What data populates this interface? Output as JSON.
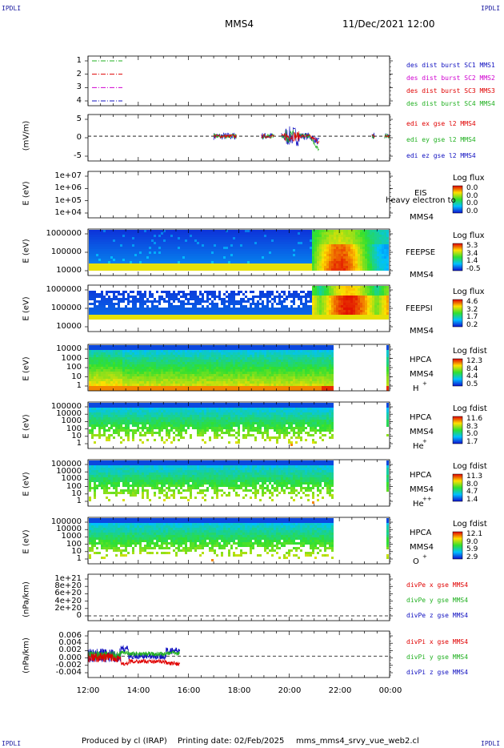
{
  "header": {
    "corner_tag": "IPDLI",
    "spacecraft": "MMS4",
    "datetime": "11/Dec/2021 12:00"
  },
  "footer": {
    "produced_by": "Produced by cl (IRAP)",
    "printing_date": "Printing date: 02/Feb/2025",
    "script": "mms_mms4_srvy_vue_web2.cl"
  },
  "colors": {
    "mms1": "#1010c0",
    "mms2": "#d000d0",
    "mms3": "#e00000",
    "mms4": "#20b020",
    "ex": "#e00000",
    "ey": "#20b020",
    "ez": "#1010c0"
  },
  "chart_data": [
    {
      "type": "line",
      "name": "burst",
      "yticks": [
        "1",
        "2",
        "3",
        "4"
      ],
      "ylim": [
        0.5,
        4.5
      ],
      "legend": [
        "des dist burst SC1 MMS1",
        "des dist burst SC2 MMS2",
        "des dist burst SC3 MMS3",
        "des dist burst SC4 MMS4"
      ],
      "series": [
        {
          "name": "SC4",
          "y": 4
        },
        {
          "name": "SC3",
          "y": 3
        },
        {
          "name": "SC2",
          "y": 2
        },
        {
          "name": "SC1",
          "y": 1
        }
      ]
    },
    {
      "type": "line",
      "name": "edi",
      "ylabel": "(mV/m)",
      "yticks": [
        "5",
        "0",
        "-5"
      ],
      "ylim": [
        -8,
        7
      ],
      "legend": [
        "edi ex gse l2 MMS4",
        "edi ey gse l2 MMS4",
        "edi ez gse l2 MMS4"
      ]
    },
    {
      "type": "heatmap",
      "name": "eis",
      "ylabel": "E (eV)",
      "yticks": [
        "1e+07",
        "1e+06",
        "1e+05",
        "1e+04"
      ],
      "side": [
        "EIS",
        "MMS4"
      ],
      "overlay": "heavy electron to",
      "colorbar_title": "Log flux",
      "colorbar_values": [
        "0.0",
        "0.0",
        "0.0",
        "0.0"
      ]
    },
    {
      "type": "heatmap",
      "name": "feepse",
      "ylabel": "E (eV)",
      "yticks": [
        "1000000",
        "100000",
        "10000"
      ],
      "side": [
        "FEEPSE",
        "MMS4"
      ],
      "colorbar_title": "Log flux",
      "colorbar_values": [
        "5.3",
        "3.4",
        "1.4",
        "-0.5"
      ]
    },
    {
      "type": "heatmap",
      "name": "feepsi",
      "ylabel": "E (eV)",
      "yticks": [
        "1000000",
        "100000",
        "10000"
      ],
      "side": [
        "FEEPSI",
        "MMS4"
      ],
      "colorbar_title": "Log flux",
      "colorbar_values": [
        "4.6",
        "3.2",
        "1.7",
        "0.2"
      ]
    },
    {
      "type": "heatmap",
      "name": "hpca_h",
      "ylabel": "E (eV)",
      "yticks": [
        "10000",
        "1000",
        "100",
        "10",
        "1"
      ],
      "side": [
        "HPCA",
        "MMS4"
      ],
      "species": "H",
      "charge": "+",
      "colorbar_title": "Log fdist",
      "colorbar_values": [
        "12.3",
        "8.4",
        "4.4",
        "0.5"
      ]
    },
    {
      "type": "heatmap",
      "name": "hpca_he1",
      "ylabel": "E (eV)",
      "yticks": [
        "100000",
        "10000",
        "1000",
        "100",
        "10",
        "1"
      ],
      "side": [
        "HPCA",
        "MMS4"
      ],
      "species": "He",
      "charge": "+",
      "colorbar_title": "Log fdist",
      "colorbar_values": [
        "11.6",
        "8.3",
        "5.0",
        "1.7"
      ]
    },
    {
      "type": "heatmap",
      "name": "hpca_he2",
      "ylabel": "E (eV)",
      "yticks": [
        "100000",
        "10000",
        "1000",
        "100",
        "10",
        "1"
      ],
      "side": [
        "HPCA",
        "MMS4"
      ],
      "species": "He",
      "charge": "++",
      "colorbar_title": "Log fdist",
      "colorbar_values": [
        "11.3",
        "8.0",
        "4.7",
        "1.4"
      ]
    },
    {
      "type": "heatmap",
      "name": "hpca_o",
      "ylabel": "E (eV)",
      "yticks": [
        "100000",
        "10000",
        "1000",
        "100",
        "10",
        "1"
      ],
      "side": [
        "HPCA",
        "MMS4"
      ],
      "species": "O",
      "charge": "+",
      "colorbar_title": "Log fdist",
      "colorbar_values": [
        "12.1",
        "9.0",
        "5.9",
        "2.9"
      ]
    },
    {
      "type": "line",
      "name": "divpe",
      "ylabel": "(nPa/km)",
      "yticks": [
        "1e+21",
        "8e+20",
        "6e+20",
        "4e+20",
        "2e+20",
        "0"
      ],
      "legend": [
        "divPe x gse MMS4",
        "divPe y gse MMS4",
        "divPe z gse MMS4"
      ]
    },
    {
      "type": "line",
      "name": "divpi",
      "ylabel": "(nPa/km)",
      "yticks": [
        "0.006",
        "0.004",
        "0.002",
        "0.000",
        "-0.002",
        "-0.004"
      ],
      "ylim": [
        -0.006,
        0.007
      ],
      "legend": [
        "divPi x gse MMS4",
        "divPi y gse MMS4",
        "divPi z gse MMS4"
      ]
    }
  ],
  "xaxis": {
    "ticks": [
      "12:00",
      "14:00",
      "16:00",
      "18:00",
      "20:00",
      "22:00",
      "00:00"
    ]
  }
}
